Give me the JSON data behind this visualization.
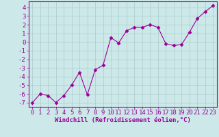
{
  "x": [
    0,
    1,
    2,
    3,
    4,
    5,
    6,
    7,
    8,
    9,
    10,
    11,
    12,
    13,
    14,
    15,
    16,
    17,
    18,
    19,
    20,
    21,
    22,
    23
  ],
  "y": [
    -7,
    -6,
    -6.2,
    -7,
    -6.2,
    -5,
    -3.5,
    -6.1,
    -3.2,
    -2.7,
    0.5,
    -0.1,
    1.3,
    1.7,
    1.7,
    2.0,
    1.7,
    -0.2,
    -0.4,
    -0.3,
    1.1,
    2.7,
    3.5,
    4.2
  ],
  "line_color": "#990099",
  "marker": "D",
  "marker_size": 2.5,
  "bg_color": "#cce8e8",
  "grid_color": "#aacccc",
  "xlabel": "Windchill (Refroidissement éolien,°C)",
  "xlabel_color": "#990099",
  "tick_color": "#990099",
  "yticks": [
    -7,
    -6,
    -5,
    -4,
    -3,
    -2,
    -1,
    0,
    1,
    2,
    3,
    4
  ],
  "xticks": [
    0,
    1,
    2,
    3,
    4,
    5,
    6,
    7,
    8,
    9,
    10,
    11,
    12,
    13,
    14,
    15,
    16,
    17,
    18,
    19,
    20,
    21,
    22,
    23
  ],
  "ylim": [
    -7.5,
    4.7
  ],
  "xlim": [
    -0.5,
    23.5
  ],
  "spine_color": "#990099",
  "font_size": 6.5
}
